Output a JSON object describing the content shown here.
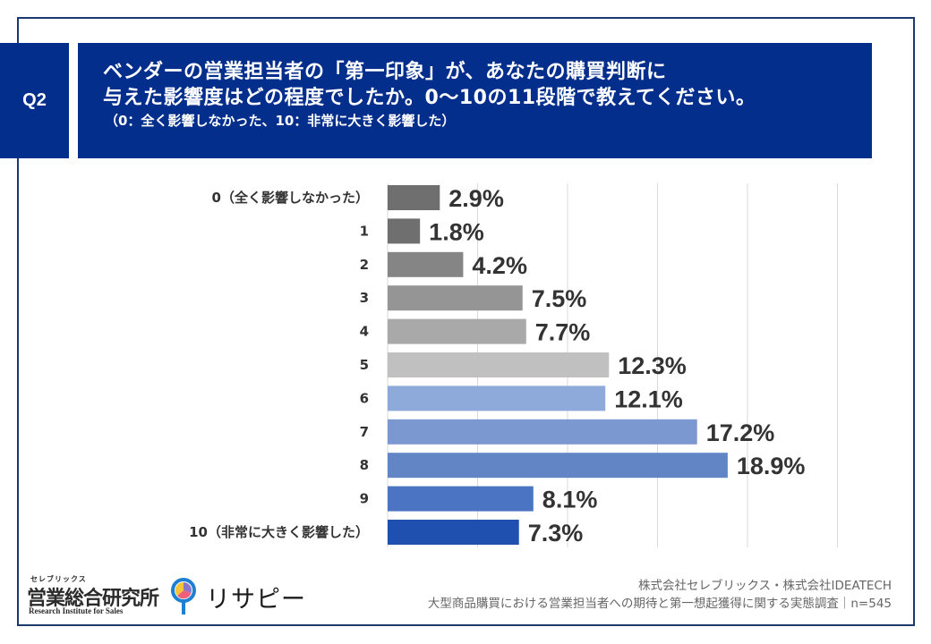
{
  "header": {
    "question_badge": "Q2",
    "title_line1": "ベンダーの営業担当者の「第一印象」が、あなたの購買判断に",
    "title_line2": "与えた影響度はどの程度でしたか。0〜10の11段階で教えてください。",
    "subtitle": "（0：全く影響しなかった、10：非常に大きく影響した）"
  },
  "chart_data": {
    "type": "bar",
    "orientation": "horizontal",
    "title": "ベンダーの営業担当者の「第一印象」が、あなたの購買判断に与えた影響度はどの程度でしたか。0〜10の11段階で教えてください。",
    "categories": [
      "0（全く影響しなかった）",
      "1",
      "2",
      "3",
      "4",
      "5",
      "6",
      "7",
      "8",
      "9",
      "10（非常に大きく影響した）"
    ],
    "values": [
      2.9,
      1.8,
      4.2,
      7.5,
      7.7,
      12.3,
      12.1,
      17.2,
      18.9,
      8.1,
      7.3
    ],
    "value_labels": [
      "2.9%",
      "1.8%",
      "4.2%",
      "7.5%",
      "7.7%",
      "12.3%",
      "12.1%",
      "17.2%",
      "18.9%",
      "8.1%",
      "7.3%"
    ],
    "colors": [
      "#6f6f6f",
      "#6f6f6f",
      "#858585",
      "#959595",
      "#a9a9a9",
      "#c0c0c0",
      "#8eaadb",
      "#7b98d0",
      "#6285c6",
      "#4b74c2",
      "#1f50b0"
    ],
    "unit": "%",
    "xlim": [
      0,
      25
    ],
    "gridlines": [
      0,
      5,
      10,
      15,
      20,
      25
    ],
    "grid": true,
    "xlabel": "",
    "ylabel": "",
    "legend": "none"
  },
  "footer": {
    "logo_kana": "セレブリックス",
    "logo_name": "営業総合研究所",
    "logo_english": "Research Institute for Sales",
    "brand_name": "リサピー",
    "source_line1": "株式会社セレブリックス・株式会社IDEATECH",
    "source_line2": "大型商品購買における営業担当者への期待と第一想起獲得に関する実態調査｜n=545"
  }
}
